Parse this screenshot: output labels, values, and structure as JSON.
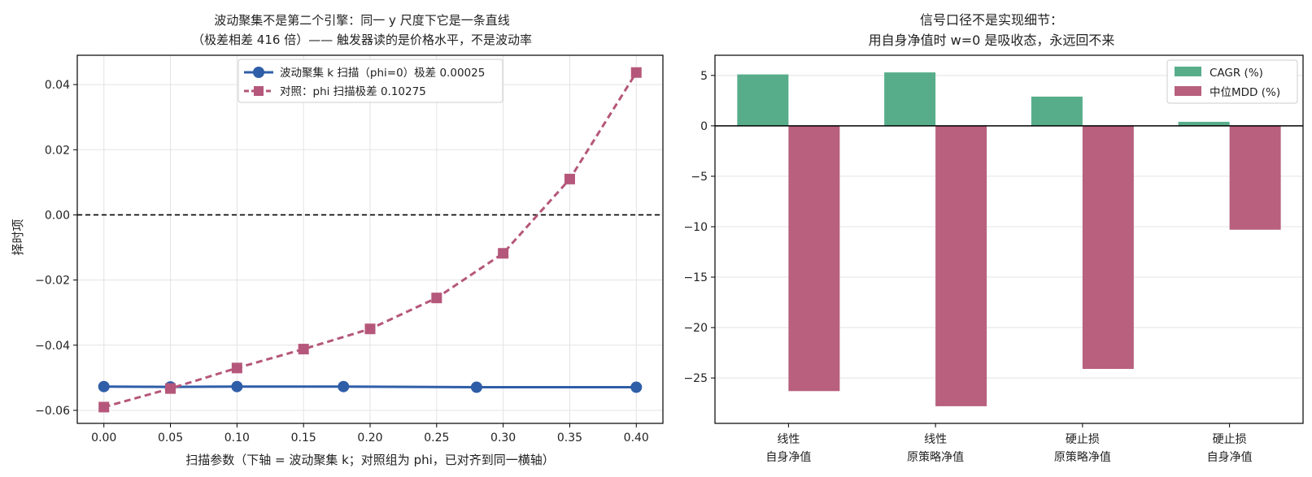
{
  "chart_data": [
    {
      "type": "line",
      "title": "波动聚集不是第二个引擎：同一 y 尺度下它是一条直线",
      "subtitle": "（极差相差 416 倍）—— 触发器读的是价格水平，不是波动率",
      "xlabel": "扫描参数（下轴 = 波动聚集 k；对照组为 phi，已对齐到同一横轴）",
      "ylabel": "择时项",
      "xlim": [
        -0.02,
        0.42
      ],
      "ylim": [
        -0.064,
        0.049
      ],
      "x_ticks": [
        0.0,
        0.05,
        0.1,
        0.15,
        0.2,
        0.25,
        0.3,
        0.35,
        0.4
      ],
      "x_tick_labels": [
        "0.00",
        "0.05",
        "0.10",
        "0.15",
        "0.20",
        "0.25",
        "0.30",
        "0.35",
        "0.40"
      ],
      "y_ticks": [
        -0.06,
        -0.04,
        -0.02,
        0.0,
        0.02,
        0.04
      ],
      "y_tick_labels": [
        "−0.06",
        "−0.04",
        "−0.02",
        "0.00",
        "0.02",
        "0.04"
      ],
      "grid": true,
      "legend_position": "top-center",
      "reference_line": {
        "y": 0.0,
        "style": "dashed",
        "color": "#000000"
      },
      "series": [
        {
          "name": "波动聚集 k 扫描（phi=0）极差 0.00025",
          "color": "#2f5ea8",
          "marker": "circle",
          "line_style": "solid",
          "x": [
            0.0,
            0.05,
            0.1,
            0.18,
            0.28,
            0.4
          ],
          "y": [
            -0.0527,
            -0.0528,
            -0.0527,
            -0.0527,
            -0.0529,
            -0.0529
          ]
        },
        {
          "name": "对照：phi 扫描极差 0.10275",
          "color": "#b5577a",
          "marker": "square",
          "line_style": "dashed",
          "x": [
            0.0,
            0.05,
            0.1,
            0.15,
            0.2,
            0.25,
            0.3,
            0.35,
            0.4
          ],
          "y": [
            -0.059,
            -0.0533,
            -0.047,
            -0.0412,
            -0.035,
            -0.0255,
            -0.0118,
            0.011,
            0.0437
          ]
        }
      ]
    },
    {
      "type": "bar",
      "title": "信号口径不是实现细节：",
      "subtitle": "用自身净值时 w=0 是吸收态，永远回不来",
      "categories": [
        [
          "线性",
          "自身净值"
        ],
        [
          "线性",
          "原策略净值"
        ],
        [
          "硬止损",
          "原策略净值"
        ],
        [
          "硬止损",
          "自身净值"
        ]
      ],
      "ylim": [
        -29.5,
        7.0
      ],
      "y_ticks": [
        5,
        0,
        -5,
        -10,
        -15,
        -20,
        -25
      ],
      "y_tick_labels": [
        "5",
        "0",
        "−5",
        "−10",
        "−15",
        "−20",
        "−25"
      ],
      "grid": true,
      "legend_position": "top-right",
      "series": [
        {
          "name": "CAGR (%)",
          "color": "#57ad8a",
          "values": [
            5.1,
            5.3,
            2.9,
            0.4
          ]
        },
        {
          "name": "中位MDD (%)",
          "color": "#b8607e",
          "values": [
            -26.3,
            -27.8,
            -24.1,
            -10.3
          ]
        }
      ]
    }
  ]
}
